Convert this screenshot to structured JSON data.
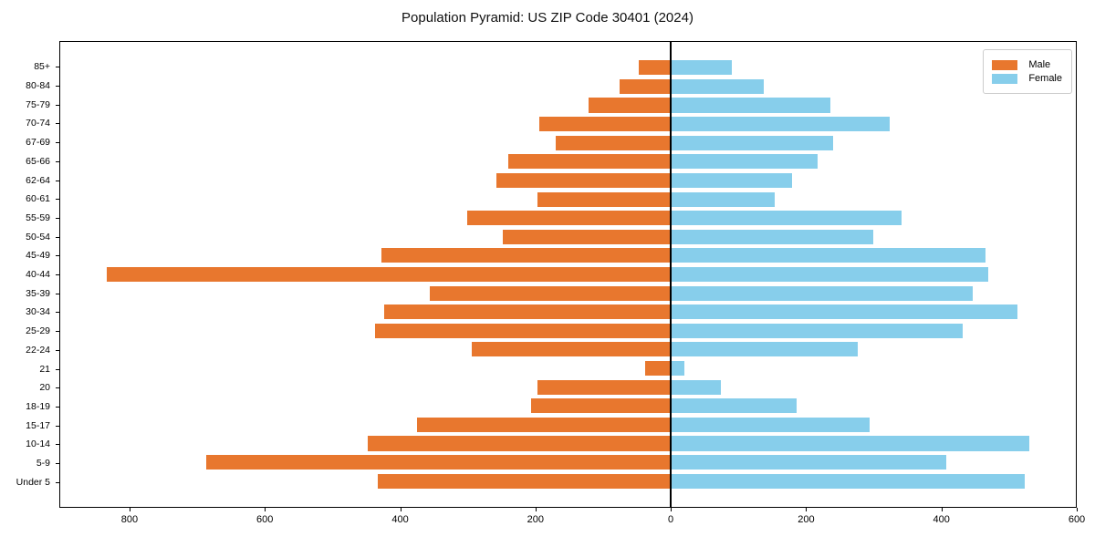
{
  "colors": {
    "male": "#e8772e",
    "female": "#87ceeb",
    "axis": "#000000",
    "legend_border": "#cccccc",
    "background": "#ffffff"
  },
  "chart_data": {
    "type": "bar",
    "subtype": "population-pyramid",
    "orientation": "horizontal",
    "title": "Population Pyramid: US ZIP Code 30401 (2024)",
    "xlabel": "",
    "ylabel": "",
    "grid": false,
    "legend_position": "upper right",
    "categories_top_to_bottom": [
      "85+",
      "80-84",
      "75-79",
      "70-74",
      "67-69",
      "65-66",
      "62-64",
      "60-61",
      "55-59",
      "50-54",
      "45-49",
      "40-44",
      "35-39",
      "30-34",
      "25-29",
      "22-24",
      "21",
      "20",
      "18-19",
      "15-17",
      "10-14",
      "5-9",
      "Under 5"
    ],
    "series": [
      {
        "name": "Male",
        "direction": "left",
        "values": [
          47,
          75,
          122,
          195,
          170,
          240,
          258,
          197,
          301,
          249,
          428,
          835,
          357,
          424,
          437,
          295,
          38,
          197,
          206,
          375,
          448,
          688,
          434
        ]
      },
      {
        "name": "Female",
        "direction": "right",
        "values": [
          90,
          138,
          236,
          324,
          241,
          217,
          180,
          154,
          342,
          300,
          466,
          470,
          448,
          513,
          432,
          277,
          20,
          74,
          187,
          294,
          531,
          408,
          525
        ]
      }
    ],
    "x_ticks": [
      {
        "value": -800,
        "label": "800"
      },
      {
        "value": -600,
        "label": "600"
      },
      {
        "value": -400,
        "label": "400"
      },
      {
        "value": -200,
        "label": "200"
      },
      {
        "value": 0,
        "label": "0"
      },
      {
        "value": 200,
        "label": "200"
      },
      {
        "value": 400,
        "label": "400"
      },
      {
        "value": 600,
        "label": "600"
      }
    ],
    "xlim": [
      -905,
      600
    ]
  }
}
